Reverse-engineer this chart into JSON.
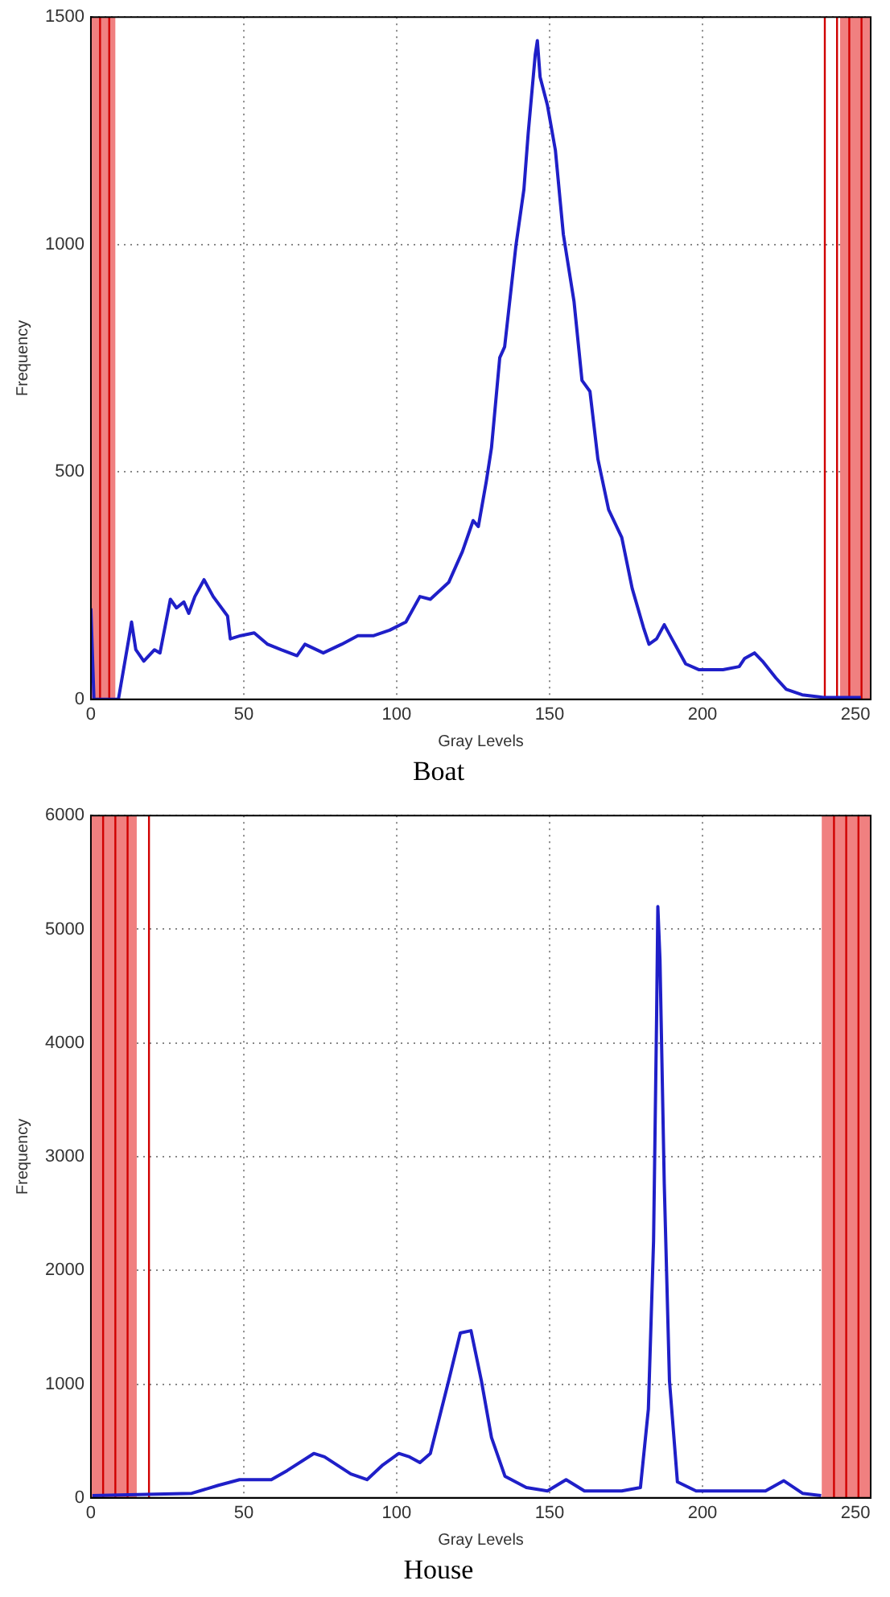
{
  "chart_data": [
    {
      "type": "line",
      "title": "Boat",
      "xlabel": "Gray Levels",
      "ylabel": "Frequency",
      "xlim": [
        0,
        255
      ],
      "ylim": [
        0,
        1500
      ],
      "xticks": [
        0,
        50,
        100,
        150,
        200,
        250
      ],
      "yticks": [
        0,
        500,
        1000,
        1500
      ],
      "grid": true,
      "marker": "none",
      "line_style": "solid",
      "x": [
        0,
        1,
        9,
        12.4,
        13.3,
        14.7,
        17.3,
        20.8,
        22.6,
        26,
        28,
        30.4,
        32,
        34,
        37,
        40,
        44.7,
        45.6,
        49,
        53.4,
        57.8,
        62.2,
        67.4,
        70,
        76,
        82,
        87.3,
        92.5,
        97.7,
        103,
        107.6,
        111,
        117,
        121.5,
        125,
        126.7,
        129.3,
        131,
        133.7,
        135.3,
        139,
        141.6,
        143,
        145.3,
        146,
        146.9,
        149.3,
        151.9,
        154.5,
        158,
        160.6,
        163.2,
        165.8,
        169.3,
        173.6,
        177,
        180.7,
        182.5,
        185,
        187.5,
        190,
        194.5,
        198.9,
        206.7,
        212,
        213.8,
        217,
        219.6,
        224,
        227.4,
        232.6,
        239.6,
        251.8
      ],
      "series": [
        {
          "color": "#1f1fc8",
          "values": [
            200,
            0,
            0,
            133,
            170,
            109,
            84,
            109,
            102,
            220,
            201,
            214,
            189,
            226,
            263,
            226,
            183,
            133,
            140,
            146,
            121,
            109,
            96,
            121,
            102,
            121,
            140,
            140,
            152,
            170,
            226,
            220,
            257,
            325,
            393,
            380,
            479,
            553,
            751,
            775,
            998,
            1121,
            1244,
            1417,
            1448,
            1368,
            1306,
            1207,
            1022,
            874,
            701,
            677,
            528,
            417,
            356,
            244,
            158,
            121,
            133,
            164,
            133,
            78,
            65,
            65,
            72,
            90,
            102,
            84,
            47,
            22,
            10,
            4,
            4
          ]
        }
      ],
      "ref_lines": [
        {
          "axis": "x",
          "value": 3,
          "color": "#d00000"
        },
        {
          "axis": "x",
          "value": 6,
          "color": "#d00000"
        },
        {
          "axis": "x",
          "value": 240,
          "color": "#d00000"
        },
        {
          "axis": "x",
          "value": 244,
          "color": "#d00000"
        },
        {
          "axis": "x",
          "value": 248,
          "color": "#d00000"
        },
        {
          "axis": "x",
          "value": 252,
          "color": "#d00000"
        }
      ],
      "bands": [
        {
          "axis": "x",
          "from": 0,
          "to": 8,
          "color": "#f08080"
        },
        {
          "axis": "x",
          "from": 245,
          "to": 255,
          "color": "#f08080"
        }
      ]
    },
    {
      "type": "line",
      "title": "House",
      "xlabel": "Gray Levels",
      "ylabel": "Frequency",
      "xlim": [
        0,
        255
      ],
      "ylim": [
        0,
        6000
      ],
      "xticks": [
        0,
        50,
        100,
        150,
        200,
        250
      ],
      "yticks": [
        0,
        1000,
        2000,
        3000,
        4000,
        5000,
        6000
      ],
      "grid": true,
      "marker": "none",
      "line_style": "solid",
      "x": [
        0.5,
        33,
        41.7,
        48.6,
        59,
        64.2,
        72.9,
        76.4,
        85,
        90.3,
        95.5,
        100.7,
        104.2,
        107.6,
        111,
        117,
        120.8,
        124.3,
        127.7,
        131,
        135.4,
        142.4,
        149.3,
        155.4,
        161.4,
        173.6,
        179.7,
        182.3,
        184,
        185,
        185.4,
        186.1,
        187.5,
        189.2,
        191.8,
        197.9,
        220.6,
        226.6,
        232.7,
        238.8
      ],
      "series": [
        {
          "color": "#1f1fc8",
          "values": [
            20,
            40,
            110,
            160,
            160,
            240,
            390,
            360,
            210,
            160,
            290,
            390,
            360,
            310,
            390,
            1030,
            1450,
            1470,
            1030,
            530,
            190,
            90,
            60,
            160,
            60,
            60,
            90,
            780,
            2260,
            4240,
            5200,
            4730,
            2760,
            1030,
            140,
            60,
            60,
            150,
            40,
            20
          ]
        }
      ],
      "ref_lines": [
        {
          "axis": "x",
          "value": 4,
          "color": "#d00000"
        },
        {
          "axis": "x",
          "value": 8,
          "color": "#d00000"
        },
        {
          "axis": "x",
          "value": 12,
          "color": "#d00000"
        },
        {
          "axis": "x",
          "value": 19,
          "color": "#d00000"
        },
        {
          "axis": "x",
          "value": 243,
          "color": "#d00000"
        },
        {
          "axis": "x",
          "value": 247,
          "color": "#d00000"
        },
        {
          "axis": "x",
          "value": 251,
          "color": "#d00000"
        }
      ],
      "bands": [
        {
          "axis": "x",
          "from": 0,
          "to": 15,
          "color": "#f08080"
        },
        {
          "axis": "x",
          "from": 239,
          "to": 255,
          "color": "#f08080"
        }
      ]
    }
  ]
}
